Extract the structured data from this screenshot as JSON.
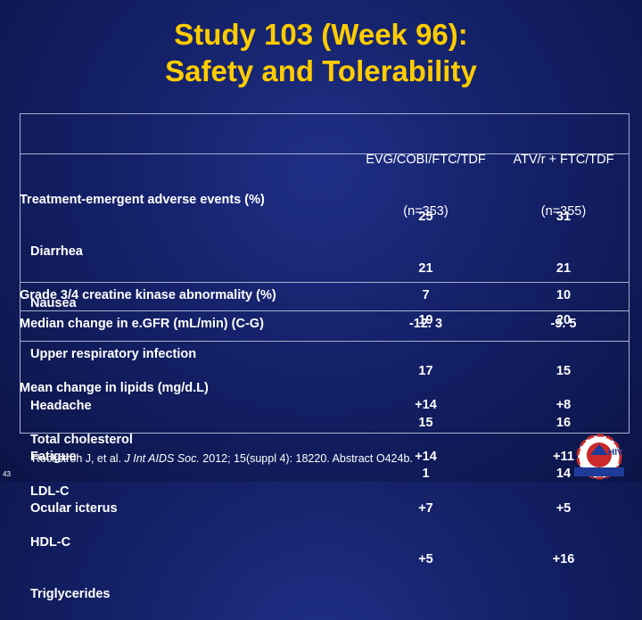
{
  "title": {
    "line1": "Study 103 (Week 96):",
    "line2": "Safety and Tolerability"
  },
  "table": {
    "col1_header": [
      "EVG/COBI/FTC/TDF",
      "(n=353)"
    ],
    "col2_header": [
      "ATV/r + FTC/TDF",
      "(n=355)"
    ],
    "group1": {
      "title": "Treatment-emergent adverse events (%)",
      "items": [
        "Diarrhea",
        "Nausea",
        "Upper respiratory infection",
        "Headache",
        "Fatigue",
        "Ocular icterus"
      ],
      "col1": [
        "25",
        "21",
        "19",
        "17",
        "15",
        "1"
      ],
      "col2": [
        "31",
        "21",
        "20",
        "15",
        "16",
        "14"
      ]
    },
    "row_ck": {
      "label": "Grade 3/4 creatine kinase abnormality (%)",
      "col1": "7",
      "col2": "10"
    },
    "row_egfr": {
      "label": "Median change in e.GFR (mL/min) (C-G)",
      "col1": "-12. 3",
      "col2": "-9. 5"
    },
    "group2": {
      "title": "Mean change in lipids (mg/d.L)",
      "items": [
        "Total cholesterol",
        "LDL-C",
        "HDL-C",
        "Triglycerides"
      ],
      "col1": [
        "+14",
        "+14",
        "+7",
        "+5"
      ],
      "col2": [
        "+8",
        "+11",
        "+5",
        "+16"
      ]
    }
  },
  "citation": {
    "before": "Rockstroh J, et al. ",
    "journal": "J Int AIDS Soc.",
    "after": " 2012; 15(suppl 4): 18220. Abstract O424b."
  },
  "page_number": "43",
  "logo": {
    "text": "HIV",
    "icon": "clinical-care-options-logo-icon"
  }
}
